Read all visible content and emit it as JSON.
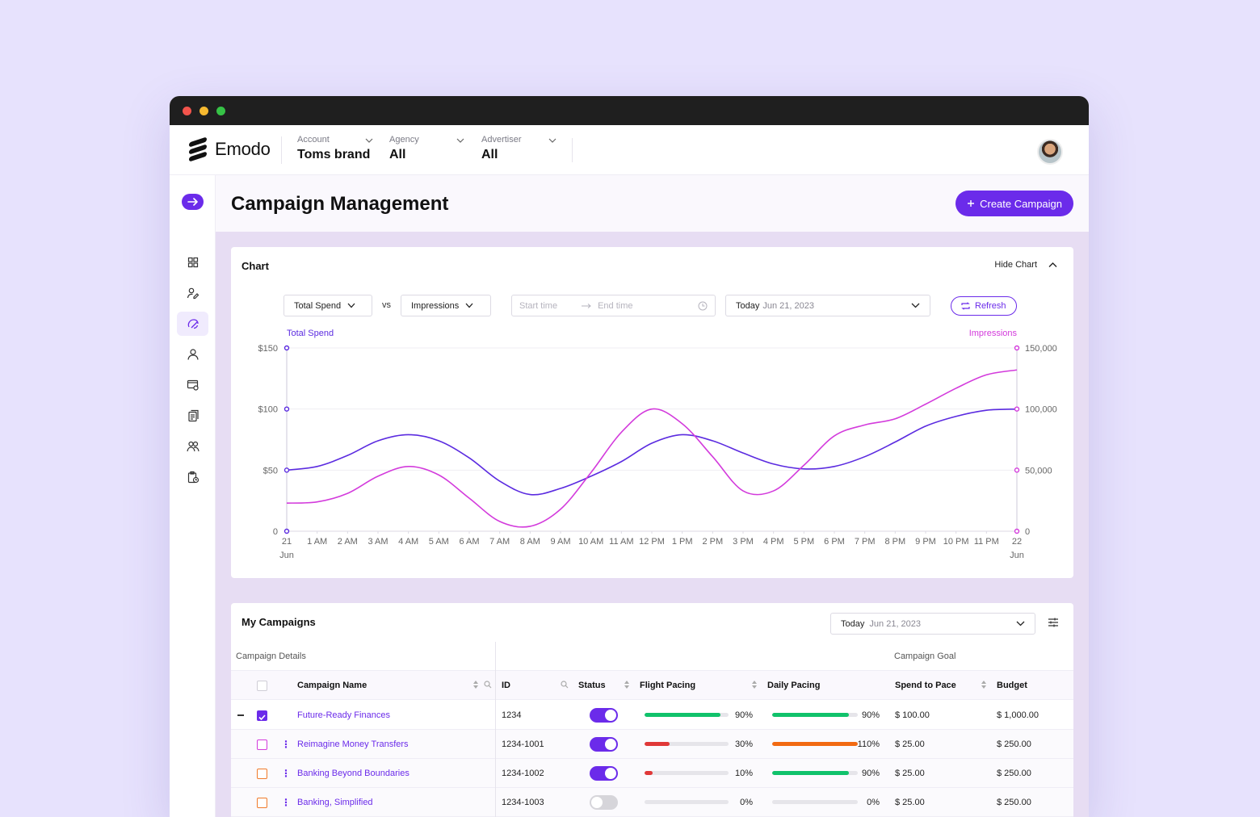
{
  "app": {
    "name": "Emodo"
  },
  "header": {
    "account": {
      "label": "Account",
      "value": "Toms brand"
    },
    "agency": {
      "label": "Agency",
      "value": "All"
    },
    "advertiser": {
      "label": "Advertiser",
      "value": "All"
    }
  },
  "page": {
    "title": "Campaign Management",
    "create_label": "Create Campaign"
  },
  "chart_card": {
    "title": "Chart",
    "hide_label": "Hide Chart",
    "metric_left": "Total Spend",
    "vs": "vs",
    "metric_right": "Impressions",
    "start_placeholder": "Start time",
    "end_placeholder": "End time",
    "date_prefix": "Today",
    "date_value": "Jun 21, 2023",
    "refresh_label": "Refresh"
  },
  "chart_data": {
    "type": "line",
    "x": [
      "21",
      "1 AM",
      "2 AM",
      "3 AM",
      "4 AM",
      "5 AM",
      "6 AM",
      "7 AM",
      "8 AM",
      "9 AM",
      "10 AM",
      "11 AM",
      "12 PM",
      "1 PM",
      "2 PM",
      "3 PM",
      "4 PM",
      "5 PM",
      "6 PM",
      "7 PM",
      "8 PM",
      "9 PM",
      "10 PM",
      "11 PM",
      "22"
    ],
    "x_sublabels": {
      "first": "Jun",
      "last": "Jun"
    },
    "series": [
      {
        "name": "Total Spend",
        "axis": "left",
        "color": "#5b2be0",
        "values": [
          50,
          53,
          62,
          74,
          79,
          74,
          60,
          41,
          30,
          35,
          45,
          57,
          72,
          79,
          74,
          64,
          55,
          51,
          53,
          61,
          73,
          86,
          94,
          99,
          100
        ]
      },
      {
        "name": "Impressions",
        "axis": "right",
        "color": "#d33bdc",
        "values": [
          23000,
          24000,
          31000,
          45000,
          53000,
          46000,
          27000,
          8000,
          4000,
          18000,
          48000,
          81000,
          100000,
          88000,
          61000,
          33000,
          33000,
          54000,
          78000,
          87000,
          92000,
          104000,
          117000,
          128000,
          132000
        ]
      }
    ],
    "y_left": {
      "label": "Total Spend",
      "ticks": [
        "$150",
        "$100",
        "$50",
        "0"
      ],
      "range": [
        0,
        150
      ]
    },
    "y_right": {
      "label": "Impressions",
      "ticks": [
        "150,000",
        "100,000",
        "50,000",
        "0"
      ],
      "range": [
        0,
        150000
      ]
    },
    "grid": true
  },
  "campaigns": {
    "title": "My Campaigns",
    "date_prefix": "Today",
    "date_value": "Jun 21, 2023",
    "group_details": "Campaign Details",
    "group_goal": "Campaign Goal",
    "columns": {
      "name": "Campaign Name",
      "id": "ID",
      "status": "Status",
      "flight": "Flight Pacing",
      "daily": "Daily Pacing",
      "spend": "Spend to Pace",
      "budget": "Budget"
    },
    "rows": [
      {
        "name": "Future-Ready Finances",
        "id": "1234",
        "status": true,
        "flight_pct": "90%",
        "flight_value": 0.9,
        "flight_color": "#10c26b",
        "daily_pct": "90%",
        "daily_value": 0.9,
        "daily_color": "#10c26b",
        "spend": "$ 100.00",
        "budget": "$ 1,000.00"
      },
      {
        "name": "Reimagine Money Transfers",
        "id": "1234-1001",
        "status": true,
        "flight_pct": "30%",
        "flight_value": 0.3,
        "flight_color": "#e03838",
        "daily_pct": "110%",
        "daily_value": 1.0,
        "daily_color": "#f26a12",
        "spend": "$ 25.00",
        "budget": "$ 250.00"
      },
      {
        "name": "Banking Beyond Boundaries",
        "id": "1234-1002",
        "status": true,
        "flight_pct": "10%",
        "flight_value": 0.1,
        "flight_color": "#e03838",
        "daily_pct": "90%",
        "daily_value": 0.9,
        "daily_color": "#10c26b",
        "spend": "$ 25.00",
        "budget": "$ 250.00"
      },
      {
        "name": "Banking, Simplified",
        "id": "1234-1003",
        "status": false,
        "flight_pct": "0%",
        "flight_value": 0,
        "flight_color": "#10c26b",
        "daily_pct": "0%",
        "daily_value": 0,
        "daily_color": "#10c26b",
        "spend": "$ 25.00",
        "budget": "$ 250.00"
      }
    ]
  },
  "icons": {
    "nav": [
      "dashboard-icon",
      "user-settings-icon",
      "campaign-icon",
      "audience-icon",
      "creatives-icon",
      "reports-icon",
      "team-icon",
      "billing-icon"
    ]
  }
}
